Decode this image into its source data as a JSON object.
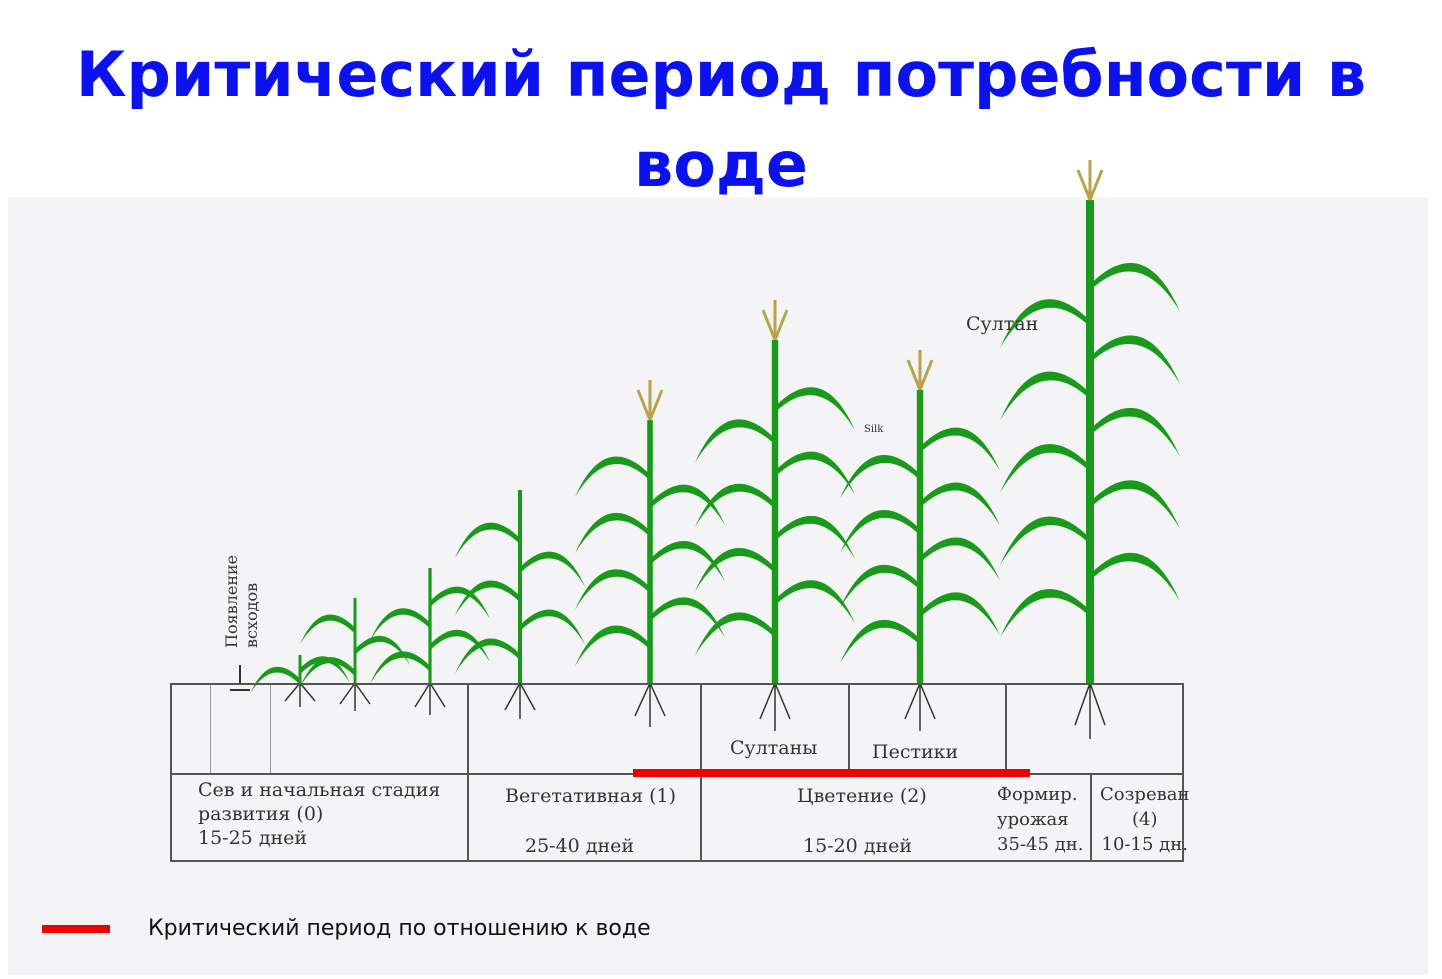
{
  "title": {
    "line1": "Критический период потребности в",
    "line2": "воде"
  },
  "diagram": {
    "emergence_label_1": "Появление",
    "emergence_label_2": "всходов",
    "tassel_label_top": "Султан",
    "silk_label": "Silk",
    "tassels_label": "Султаны",
    "pistils_label": "Пестики",
    "stages": [
      {
        "line1": "Сев и начальная стадия",
        "line2": "развития (0)",
        "line3": "15-25 дней"
      },
      {
        "line1": "Вегетативная (1)",
        "line2": "25-40 дней"
      },
      {
        "line1": "Цветение (2)",
        "line2": "15-20 дней"
      },
      {
        "line1": "Формир.",
        "line2": "урожая",
        "line3": "35-45 дн."
      },
      {
        "line1": "Созреван",
        "line2": "(4)",
        "line3": "10-15 дн."
      }
    ],
    "critical_period": {
      "from_stage": "Вегетативная (1)",
      "to_stage": "Формир. урожая",
      "color": "#f20000"
    }
  },
  "legend": {
    "label": "Критический период по отношению к воде",
    "color": "#f20000"
  },
  "colors": {
    "title": "#0b12ee",
    "plant": "#1a9a1a"
  }
}
